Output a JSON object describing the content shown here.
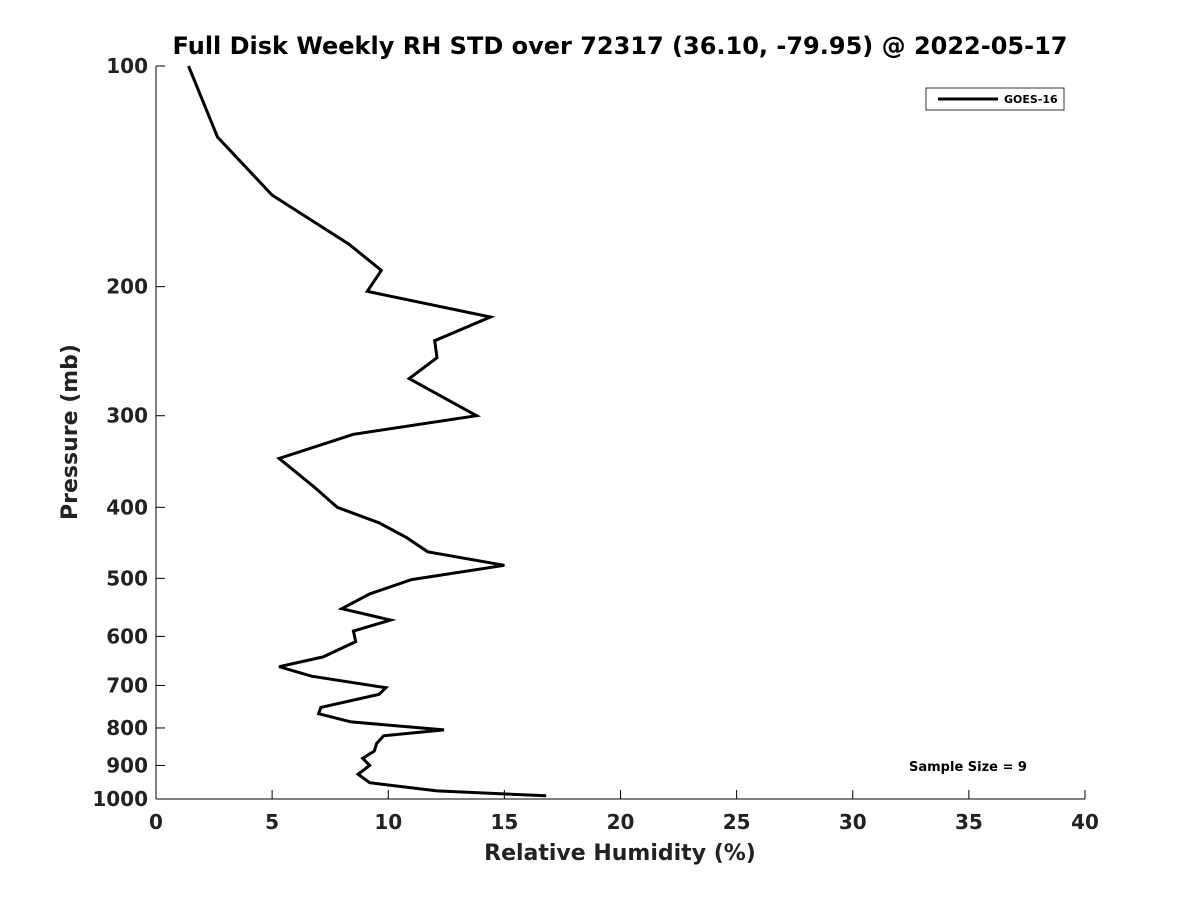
{
  "chart_data": {
    "type": "line",
    "title": "Full Disk Weekly RH STD over 72317 (36.10, -79.95) @ 2022-05-17",
    "xlabel": "Relative Humidity (%)",
    "ylabel": "Pressure (mb)",
    "xlim": [
      0,
      40
    ],
    "ylim": [
      100,
      1000
    ],
    "y_scale": "log",
    "y_inverted": true,
    "x_ticks": [
      "0",
      "5",
      "10",
      "15",
      "20",
      "25",
      "30",
      "35",
      "40"
    ],
    "y_ticks": [
      "100",
      "200",
      "300",
      "400",
      "500",
      "600",
      "700",
      "800",
      "900",
      "1000"
    ],
    "legend": {
      "placement": "top-right",
      "entries": [
        "GOES-16"
      ]
    },
    "annotation": "Sample Size = 9",
    "grid": false,
    "series": [
      {
        "name": "GOES-16",
        "color": "#000000",
        "x": [
          1.4,
          2.65,
          5.0,
          8.3,
          9.7,
          9.1,
          14.4,
          12.0,
          12.1,
          10.9,
          13.8,
          8.5,
          5.3,
          6.8,
          7.8,
          9.6,
          10.8,
          11.7,
          15.0,
          11.0,
          9.2,
          8.0,
          10.1,
          8.5,
          8.6,
          7.2,
          5.3,
          6.7,
          9.9,
          9.6,
          7.1,
          7.0,
          8.4,
          12.4,
          9.8,
          9.5,
          9.4,
          8.9,
          9.2,
          8.7,
          9.2,
          12.1,
          16.8
        ],
        "y": [
          100,
          125,
          150,
          175,
          190,
          203,
          220,
          237,
          250,
          267,
          300,
          318,
          343,
          375,
          400,
          420,
          440,
          460,
          480,
          502,
          525,
          550,
          570,
          590,
          610,
          640,
          660,
          680,
          705,
          720,
          750,
          765,
          785,
          805,
          820,
          840,
          860,
          880,
          900,
          925,
          950,
          975,
          990
        ]
      }
    ]
  }
}
